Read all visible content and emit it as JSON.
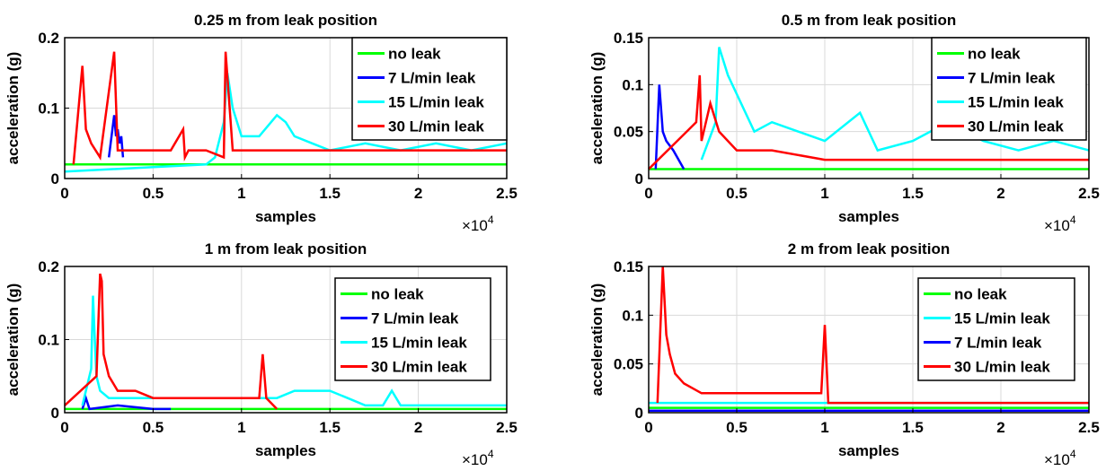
{
  "figure": {
    "xlabel": "samples",
    "ylabel": "acceleration (g)",
    "x_multiplier_base": "×10",
    "x_multiplier_exponent": "4"
  },
  "chart_data": [
    {
      "type": "line",
      "title": "0.25 m from leak position",
      "xlabel": "samples",
      "ylabel": "acceleration (g)",
      "x_scale_note": "×10^4",
      "xlim": [
        0,
        2.5
      ],
      "ylim": [
        0,
        0.2
      ],
      "xticks": [
        0,
        0.5,
        1,
        1.5,
        2,
        2.5
      ],
      "xtick_labels": [
        "0",
        "0.5",
        "1",
        "1.5",
        "2",
        "2.5"
      ],
      "yticks": [
        0,
        0.1,
        0.2
      ],
      "ytick_labels": [
        "0",
        "0.1",
        "0.2"
      ],
      "grid": true,
      "legend_position": "top-right",
      "series": [
        {
          "name": "no leak",
          "color": "#00ff00",
          "x": [
            0,
            2.5
          ],
          "y": [
            0.02,
            0.02
          ]
        },
        {
          "name": "7 L/min leak",
          "color": "#0000ff",
          "x": [
            0.25,
            0.28,
            0.29,
            0.3,
            0.31,
            0.32,
            0.33
          ],
          "y": [
            0.03,
            0.09,
            0.06,
            0.07,
            0.05,
            0.06,
            0.03
          ]
        },
        {
          "name": "15 L/min leak",
          "color": "#00ffff",
          "x": [
            0,
            0.8,
            0.85,
            0.9,
            0.92,
            0.95,
            1.0,
            1.1,
            1.2,
            1.25,
            1.3,
            1.4,
            1.5,
            1.7,
            1.9,
            2.1,
            2.3,
            2.5
          ],
          "y": [
            0.01,
            0.02,
            0.03,
            0.08,
            0.15,
            0.1,
            0.06,
            0.06,
            0.09,
            0.08,
            0.06,
            0.05,
            0.04,
            0.05,
            0.04,
            0.05,
            0.04,
            0.05
          ]
        },
        {
          "name": "30 L/min leak",
          "color": "#ff0000",
          "x": [
            0.05,
            0.1,
            0.12,
            0.15,
            0.2,
            0.28,
            0.3,
            0.4,
            0.5,
            0.6,
            0.67,
            0.68,
            0.7,
            0.8,
            0.9,
            0.91,
            0.95,
            1.0,
            1.2,
            1.5,
            1.8,
            2.0,
            2.2,
            2.5
          ],
          "y": [
            0.02,
            0.16,
            0.07,
            0.05,
            0.03,
            0.18,
            0.04,
            0.04,
            0.04,
            0.04,
            0.07,
            0.03,
            0.04,
            0.04,
            0.03,
            0.18,
            0.04,
            0.04,
            0.04,
            0.04,
            0.04,
            0.04,
            0.04,
            0.04
          ]
        }
      ]
    },
    {
      "type": "line",
      "title": "0.5 m from leak position",
      "xlabel": "samples",
      "ylabel": "acceleration (g)",
      "x_scale_note": "×10^4",
      "xlim": [
        0,
        2.5
      ],
      "ylim": [
        0,
        0.15
      ],
      "xticks": [
        0,
        0.5,
        1,
        1.5,
        2,
        2.5
      ],
      "xtick_labels": [
        "0",
        "0.5",
        "1",
        "1.5",
        "2",
        "2.5"
      ],
      "yticks": [
        0,
        0.05,
        0.1,
        0.15
      ],
      "ytick_labels": [
        "0",
        "0.05",
        "0.1",
        "0.15"
      ],
      "grid": true,
      "legend_position": "top-right",
      "series": [
        {
          "name": "no leak",
          "color": "#00ff00",
          "x": [
            0,
            2.5
          ],
          "y": [
            0.01,
            0.01
          ]
        },
        {
          "name": "7 L/min leak",
          "color": "#0000ff",
          "x": [
            0.04,
            0.06,
            0.08,
            0.1,
            0.14,
            0.2
          ],
          "y": [
            0.01,
            0.1,
            0.05,
            0.04,
            0.03,
            0.01
          ]
        },
        {
          "name": "15 L/min leak",
          "color": "#00ffff",
          "x": [
            0.3,
            0.38,
            0.4,
            0.45,
            0.6,
            0.7,
            0.85,
            1.0,
            1.2,
            1.3,
            1.5,
            1.7,
            1.9,
            2.1,
            2.3,
            2.5
          ],
          "y": [
            0.02,
            0.06,
            0.14,
            0.11,
            0.05,
            0.06,
            0.05,
            0.04,
            0.07,
            0.03,
            0.04,
            0.06,
            0.04,
            0.03,
            0.04,
            0.03
          ]
        },
        {
          "name": "30 L/min leak",
          "color": "#ff0000",
          "x": [
            0,
            0.27,
            0.29,
            0.3,
            0.35,
            0.4,
            0.5,
            0.7,
            1.0,
            1.5,
            2.0,
            2.5
          ],
          "y": [
            0.01,
            0.06,
            0.11,
            0.04,
            0.08,
            0.05,
            0.03,
            0.03,
            0.02,
            0.02,
            0.02,
            0.02
          ]
        }
      ]
    },
    {
      "type": "line",
      "title": "1 m from leak position",
      "xlabel": "samples",
      "ylabel": "acceleration (g)",
      "x_scale_note": "×10^4",
      "xlim": [
        0,
        2.5
      ],
      "ylim": [
        0,
        0.2
      ],
      "xticks": [
        0,
        0.5,
        1,
        1.5,
        2,
        2.5
      ],
      "xtick_labels": [
        "0",
        "0.5",
        "1",
        "1.5",
        "2",
        "2.5"
      ],
      "yticks": [
        0,
        0.1,
        0.2
      ],
      "ytick_labels": [
        "0",
        "0.1",
        "0.2"
      ],
      "grid": true,
      "legend_position": "right",
      "series": [
        {
          "name": "no leak",
          "color": "#00ff00",
          "x": [
            0,
            2.5
          ],
          "y": [
            0.005,
            0.005
          ]
        },
        {
          "name": "7 L/min leak",
          "color": "#0000ff",
          "x": [
            0.1,
            0.12,
            0.14,
            0.3,
            0.5,
            0.6
          ],
          "y": [
            0.005,
            0.02,
            0.005,
            0.01,
            0.005,
            0.005
          ]
        },
        {
          "name": "15 L/min leak",
          "color": "#00ffff",
          "x": [
            0.1,
            0.15,
            0.16,
            0.17,
            0.18,
            0.2,
            0.25,
            0.4,
            0.6,
            1.0,
            1.2,
            1.3,
            1.5,
            1.6,
            1.7,
            1.8,
            1.85,
            1.9,
            2.0,
            2.5
          ],
          "y": [
            0.01,
            0.06,
            0.16,
            0.1,
            0.05,
            0.03,
            0.02,
            0.02,
            0.02,
            0.02,
            0.02,
            0.03,
            0.03,
            0.02,
            0.01,
            0.01,
            0.03,
            0.01,
            0.01,
            0.01
          ]
        },
        {
          "name": "30 L/min leak",
          "color": "#ff0000",
          "x": [
            0,
            0.18,
            0.2,
            0.21,
            0.22,
            0.25,
            0.3,
            0.4,
            0.5,
            0.7,
            0.9,
            1.1,
            1.12,
            1.14,
            1.2
          ],
          "y": [
            0.01,
            0.05,
            0.19,
            0.18,
            0.08,
            0.05,
            0.03,
            0.03,
            0.02,
            0.02,
            0.02,
            0.02,
            0.08,
            0.02,
            0.005
          ]
        }
      ]
    },
    {
      "type": "line",
      "title": "2 m from leak position",
      "xlabel": "samples",
      "ylabel": "acceleration (g)",
      "x_scale_note": "×10^4",
      "xlim": [
        0,
        2.5
      ],
      "ylim": [
        0,
        0.15
      ],
      "xticks": [
        0,
        0.5,
        1,
        1.5,
        2,
        2.5
      ],
      "xtick_labels": [
        "0",
        "0.5",
        "1",
        "1.5",
        "2",
        "2.5"
      ],
      "yticks": [
        0,
        0.05,
        0.1,
        0.15
      ],
      "ytick_labels": [
        "0",
        "0.05",
        "0.1",
        "0.15"
      ],
      "grid": true,
      "legend_position": "right",
      "series": [
        {
          "name": "no leak",
          "color": "#00ff00",
          "x": [
            0,
            2.5
          ],
          "y": [
            0.005,
            0.005
          ]
        },
        {
          "name": "15 L/min leak",
          "color": "#00ffff",
          "x": [
            0,
            0.5,
            1.0,
            1.5,
            2.0,
            2.5
          ],
          "y": [
            0.01,
            0.01,
            0.01,
            0.01,
            0.01,
            0.01
          ]
        },
        {
          "name": "7 L/min leak",
          "color": "#0000ff",
          "x": [
            0,
            2.5
          ],
          "y": [
            0.002,
            0.002
          ]
        },
        {
          "name": "30 L/min leak",
          "color": "#ff0000",
          "x": [
            0.05,
            0.08,
            0.1,
            0.12,
            0.15,
            0.2,
            0.3,
            0.5,
            0.7,
            0.9,
            0.98,
            1.0,
            1.02,
            1.1,
            1.5,
            2.0,
            2.5
          ],
          "y": [
            0.01,
            0.15,
            0.08,
            0.06,
            0.04,
            0.03,
            0.02,
            0.02,
            0.02,
            0.02,
            0.02,
            0.09,
            0.01,
            0.01,
            0.01,
            0.01,
            0.01
          ]
        }
      ]
    }
  ]
}
